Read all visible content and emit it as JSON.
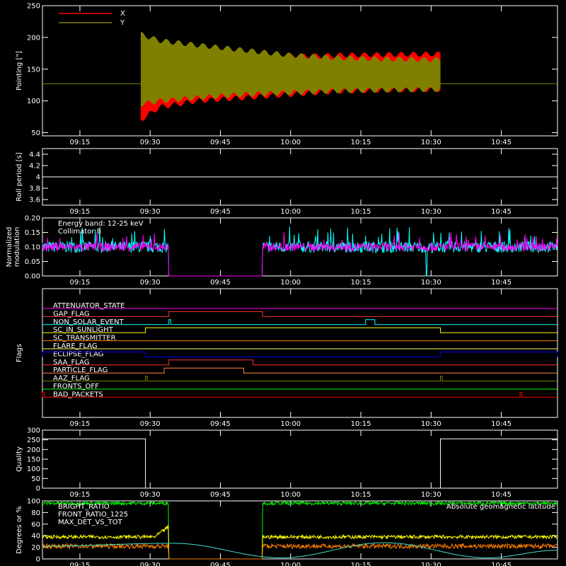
{
  "x_ticks": [
    "09:15",
    "09:30",
    "09:45",
    "10:00",
    "10:15",
    "10:30",
    "10:45"
  ],
  "x_tick_minutes": [
    915,
    930,
    945,
    1000,
    1015,
    1030,
    1045
  ],
  "x_range": [
    "09:07",
    "10:57"
  ],
  "chart_data": [
    {
      "type": "area",
      "ylabel": "Pointing [\"]",
      "ylim": [
        45,
        250
      ],
      "yticks": [
        50,
        100,
        150,
        200,
        250
      ],
      "legend": [
        "X",
        "Y"
      ],
      "legend_placement": "top-left",
      "reference_line": 127,
      "series": [
        {
          "name": "X",
          "color": "#ff0000",
          "x": [
            "09:28",
            "09:32",
            "09:40",
            "09:50",
            "10:00",
            "10:10",
            "10:20",
            "10:32"
          ],
          "upper": [
            200,
            175,
            172,
            170,
            170,
            172,
            173,
            174
          ],
          "lower": [
            70,
            90,
            100,
            105,
            110,
            115,
            117,
            118
          ]
        },
        {
          "name": "Y",
          "color": "#808000",
          "x": [
            "09:28",
            "09:32",
            "09:40",
            "09:50",
            "10:00",
            "10:10",
            "10:20",
            "10:32"
          ],
          "upper": [
            205,
            195,
            188,
            180,
            172,
            168,
            166,
            165
          ],
          "lower": [
            95,
            100,
            105,
            110,
            113,
            116,
            117,
            118
          ]
        }
      ]
    },
    {
      "type": "line",
      "ylabel": "Roll period [s]",
      "ylim": [
        3.5,
        4.5
      ],
      "yticks": [
        3.6,
        3.8,
        4.0,
        4.2,
        4.4
      ],
      "series": [
        {
          "color": "#ffffff",
          "x": [
            "09:07",
            "10:57"
          ],
          "values": [
            4.0,
            4.0
          ]
        }
      ]
    },
    {
      "type": "line",
      "ylabel": "Normalized modulation",
      "ylim": [
        0.0,
        0.2
      ],
      "yticks": [
        "0.00",
        "0.05",
        "0.10",
        "0.15",
        "0.20"
      ],
      "annotation_lines": [
        "Energy band: 12-25 keV",
        "Collimator 8"
      ],
      "gaps": [
        [
          "09:34",
          "09:54"
        ]
      ],
      "series": [
        {
          "color": "#00ffff",
          "mean": 0.1,
          "spread": 0.02
        },
        {
          "color": "#ff00ff",
          "mean": 0.1,
          "spread": 0.015
        }
      ]
    },
    {
      "type": "step",
      "ylabel": "Flags",
      "flags": [
        {
          "name": "ATTENUATOR_STATE",
          "color": "#ff00ff",
          "on": []
        },
        {
          "name": "GAP_FLAG",
          "color": "#ff3030",
          "on": [
            [
              "09:34",
              "09:54"
            ]
          ]
        },
        {
          "name": "NON_SOLAR_EVENT",
          "color": "#00ffff",
          "on": [
            [
              "09:34",
              "09:34"
            ],
            [
              "10:16",
              "10:18"
            ]
          ]
        },
        {
          "name": "SC_IN_SUNLIGHT",
          "color": "#ffff00",
          "on": [
            [
              "09:29",
              "10:32"
            ]
          ]
        },
        {
          "name": "SC_TRANSMITTER",
          "color": "#ff8000",
          "on": []
        },
        {
          "name": "FLARE_FLAG",
          "color": "#ffff60",
          "on": []
        },
        {
          "name": "ECLIPSE_FLAG",
          "color": "#0000ff",
          "on": [
            [
              "09:07",
              "09:29"
            ],
            [
              "10:32",
              "10:57"
            ]
          ]
        },
        {
          "name": "SAA_FLAG",
          "color": "#ff3030",
          "on": [
            [
              "09:34",
              "09:52"
            ]
          ]
        },
        {
          "name": "PARTICLE_FLAG",
          "color": "#ff8040",
          "on": [
            [
              "09:33",
              "09:50"
            ]
          ]
        },
        {
          "name": "AAZ_FLAG",
          "color": "#808000",
          "on": [
            [
              "09:29",
              "09:29"
            ],
            [
              "10:32",
              "10:32"
            ]
          ]
        },
        {
          "name": "FRONTS_OFF",
          "color": "#00ff00",
          "on": []
        },
        {
          "name": "BAD_PACKETS",
          "color": "#ff0000",
          "on": [
            [
              "09:07",
              "09:07"
            ],
            [
              "10:49",
              "10:49"
            ]
          ]
        }
      ]
    },
    {
      "type": "step",
      "ylabel": "Quality",
      "ylim": [
        0,
        300
      ],
      "yticks": [
        0,
        50,
        100,
        150,
        200,
        250,
        300
      ],
      "series": [
        {
          "color": "#ffffff",
          "segments": [
            [
              "09:07",
              "09:29",
              255
            ],
            [
              "09:29",
              "10:32",
              0
            ],
            [
              "10:32",
              "10:57",
              255
            ]
          ]
        }
      ]
    },
    {
      "type": "line",
      "ylabel": "Degrees or %",
      "ylim": [
        0,
        100
      ],
      "yticks": [
        0,
        20,
        40,
        60,
        80,
        100
      ],
      "legend": [
        "BRIGHT_RATIO",
        "FRONT_RATIO_1225",
        "MAX_DET_VS_TOT"
      ],
      "legend_colors": [
        "#00ff00",
        "#ffff00",
        "#ff8000"
      ],
      "annotation": "Absolute geomagnetic latitude",
      "gaps": [
        [
          "09:34",
          "09:54"
        ]
      ],
      "series": [
        {
          "name": "BRIGHT_RATIO",
          "color": "#00ff00",
          "mean": 96,
          "spread": 3
        },
        {
          "name": "FRONT_RATIO_1225",
          "color": "#ffff00",
          "mean": 38,
          "spread": 3
        },
        {
          "name": "MAX_DET_VS_TOT",
          "color": "#ff8000",
          "mean": 22,
          "spread": 4
        },
        {
          "name": "Absolute geomagnetic latitude",
          "color": "#40e0d0",
          "x": [
            "09:07",
            "09:35",
            "09:58",
            "10:20",
            "10:42",
            "10:57"
          ],
          "values": [
            22,
            27,
            2,
            28,
            2,
            15
          ]
        }
      ]
    }
  ]
}
